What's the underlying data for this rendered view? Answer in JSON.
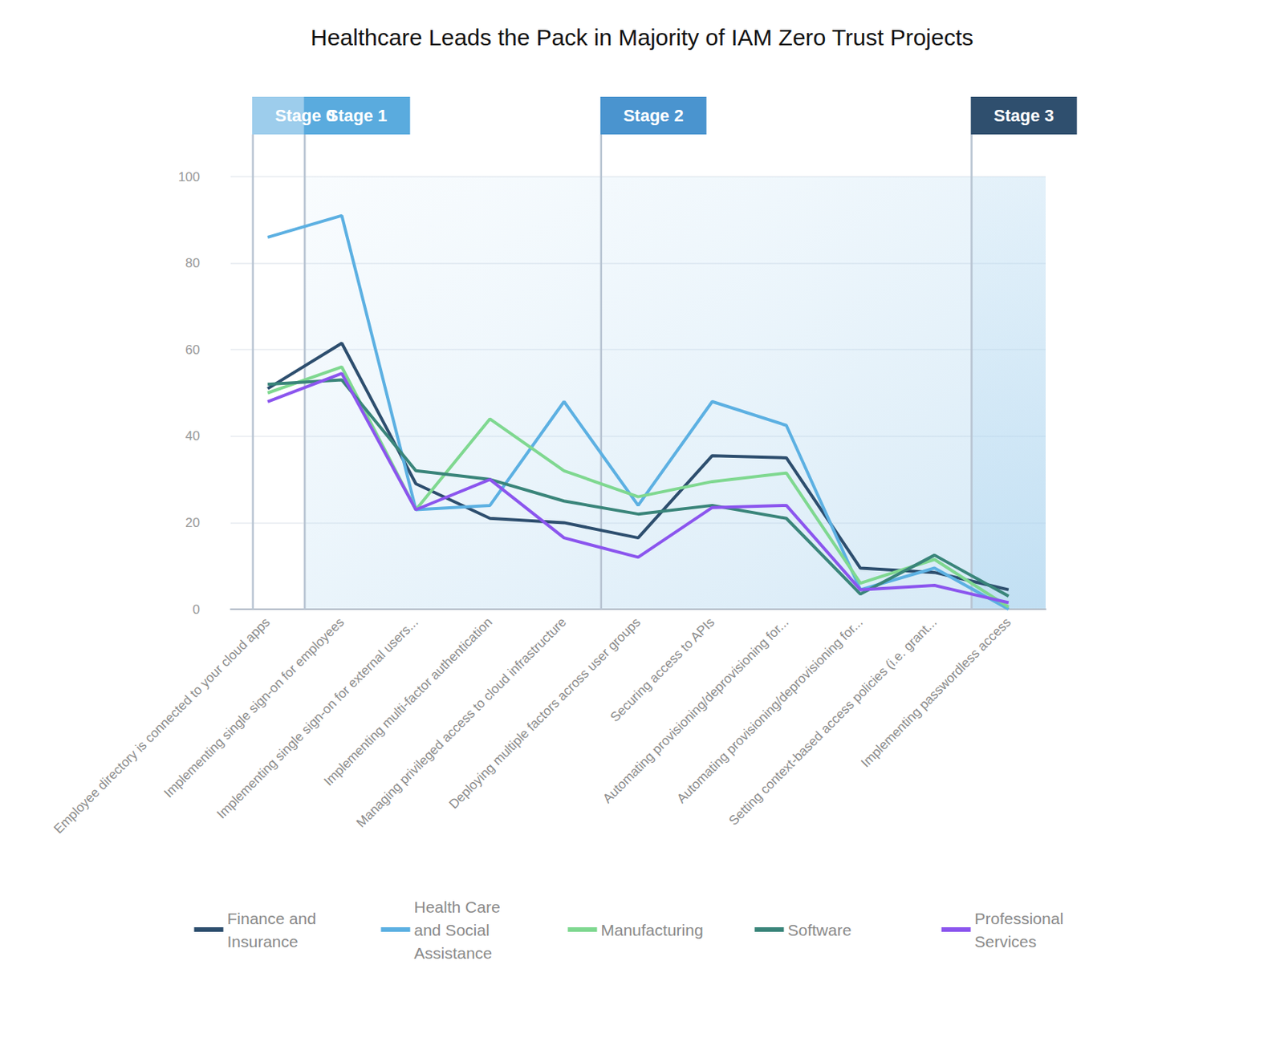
{
  "chart_data": {
    "type": "line",
    "title": "Healthcare Leads the Pack in Majority of IAM Zero Trust Projects",
    "categories": [
      "Employee directory is connected to your cloud apps",
      "Implementing single sign-on for employees",
      "Implementing single sign-on for external users...",
      "Implementing multi-factor authentication",
      "Managing privileged access to cloud infrastructure",
      "Deploying multiple factors across user groups",
      "Securing access to APIs",
      "Automating provisioning/deprovisioning for...",
      "Automating provisioning/deprovisioning for...",
      "Setting context-based access policies (i.e. grant...",
      "Implementing passwordless access"
    ],
    "series": [
      {
        "name": "Finance and Insurance",
        "color": "#2d4e6e",
        "values": [
          51,
          61.5,
          29,
          21,
          20,
          16.5,
          35.5,
          35,
          9.5,
          8.5,
          4.5
        ]
      },
      {
        "name": "Health Care and Social Assistance",
        "color": "#5cb0e2",
        "values": [
          86,
          91,
          23,
          24,
          48,
          24,
          48,
          42.5,
          4.5,
          9.5,
          0
        ]
      },
      {
        "name": "Manufacturing",
        "color": "#7fd890",
        "values": [
          50,
          56,
          23,
          44,
          32,
          26,
          29.5,
          31.5,
          6,
          11.5,
          0.5
        ]
      },
      {
        "name": "Software",
        "color": "#3a857a",
        "values": [
          52,
          53,
          32,
          30,
          25,
          22,
          24,
          21,
          3.5,
          12.5,
          3
        ]
      },
      {
        "name": "Professional Services",
        "color": "#8b55ee",
        "values": [
          48,
          54.5,
          23,
          30,
          16.5,
          12,
          23.5,
          24,
          4.5,
          5.5,
          1.5
        ]
      }
    ],
    "ylim": [
      0,
      100
    ],
    "yticks": [
      0,
      20,
      40,
      60,
      80,
      100
    ],
    "grid": true,
    "legend": "bottom",
    "annotations": [
      {
        "label": "Stage 0",
        "category": "Employee directory is connected to your cloud apps"
      },
      {
        "label": "Stage 1",
        "category": "Implementing single sign-on for employees"
      },
      {
        "label": "Stage 2",
        "category": "Deploying multiple factors across user groups"
      },
      {
        "label": "Stage 3",
        "category": "Implementing passwordless access"
      }
    ]
  }
}
